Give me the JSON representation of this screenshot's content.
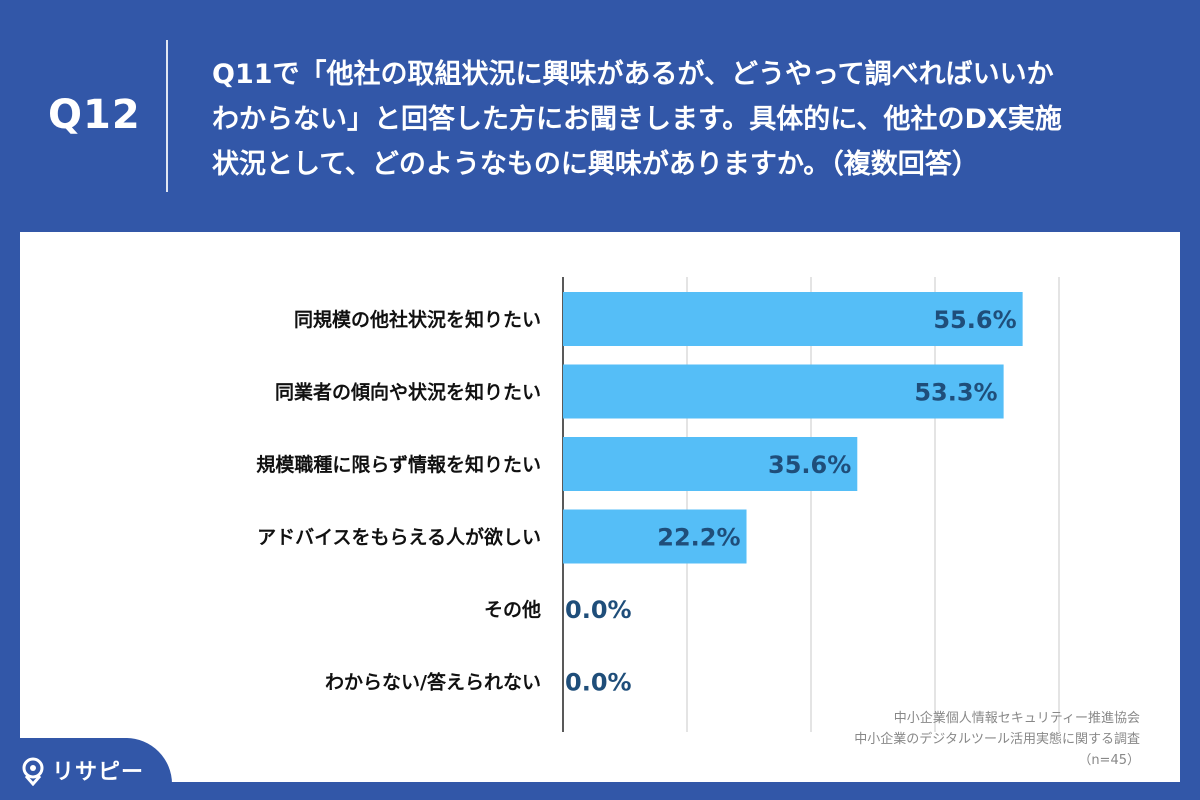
{
  "header": {
    "question_number": "Q12",
    "question_lines": [
      "Q11で「他社の取組状況に興味があるが、どうやって調べればいいか",
      "わからない」と回答した方にお聞きします。具体的に、他社のDX実施",
      "状況として、どのようなものに興味がありますか。（複数回答）"
    ]
  },
  "chart_data": {
    "type": "bar",
    "orientation": "horizontal",
    "categories": [
      "同規模の他社状況を知りたい",
      "同業者の傾向や状況を知りたい",
      "規模職種に限らず情報を知りたい",
      "アドバイスをもらえる人が欲しい",
      "その他",
      "わからない/答えられない"
    ],
    "values": [
      55.6,
      53.3,
      35.6,
      22.2,
      0.0,
      0.0
    ],
    "value_labels": [
      "55.6%",
      "53.3%",
      "35.6%",
      "22.2%",
      "0.0%",
      "0.0%"
    ],
    "xlim": [
      0,
      75
    ],
    "grid": true,
    "bar_color": "#55bef7",
    "label_color": "#1f4e7a"
  },
  "source": {
    "lines": [
      "中小企業個人情報セキュリティー推進協会",
      "中小企業のデジタルツール活用実態に関する調査",
      "（n=45）"
    ]
  },
  "logo": {
    "text": "リサピー",
    "icon": "map-pin-icon"
  },
  "colors": {
    "background": "#3257a8",
    "panel": "#ffffff",
    "bar": "#55bef7",
    "value_text": "#1f4e7a"
  }
}
